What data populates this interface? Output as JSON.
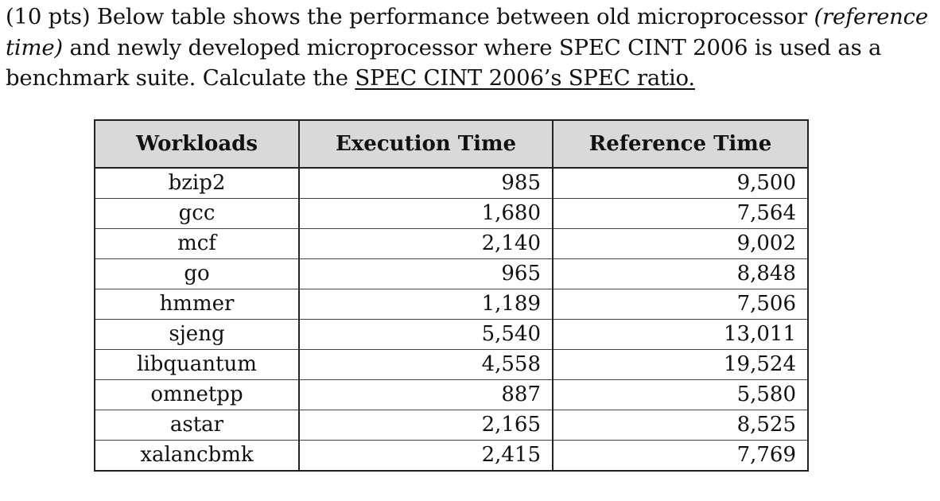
{
  "question": {
    "prefix": "(10 pts) Below table shows the performance between old microprocessor ",
    "italic": "(reference time)",
    "middle": " and newly developed microprocessor where SPEC CINT 2006 is used as a benchmark suite. Calculate the ",
    "underlined": "SPEC CINT 2006’s SPEC ratio."
  },
  "table": {
    "headers": [
      "Workloads",
      "Execution Time",
      "Reference Time"
    ],
    "rows": [
      [
        "bzip2",
        "985",
        "9,500"
      ],
      [
        "gcc",
        "1,680",
        "7,564"
      ],
      [
        "mcf",
        "2,140",
        "9,002"
      ],
      [
        "go",
        "965",
        "8,848"
      ],
      [
        "hmmer",
        "1,189",
        "7,506"
      ],
      [
        "sjeng",
        "5,540",
        "13,011"
      ],
      [
        "libquantum",
        "4,558",
        "19,524"
      ],
      [
        "omnetpp",
        "887",
        "5,580"
      ],
      [
        "astar",
        "2,165",
        "8,525"
      ],
      [
        "xalancbmk",
        "2,415",
        "7,769"
      ]
    ]
  }
}
